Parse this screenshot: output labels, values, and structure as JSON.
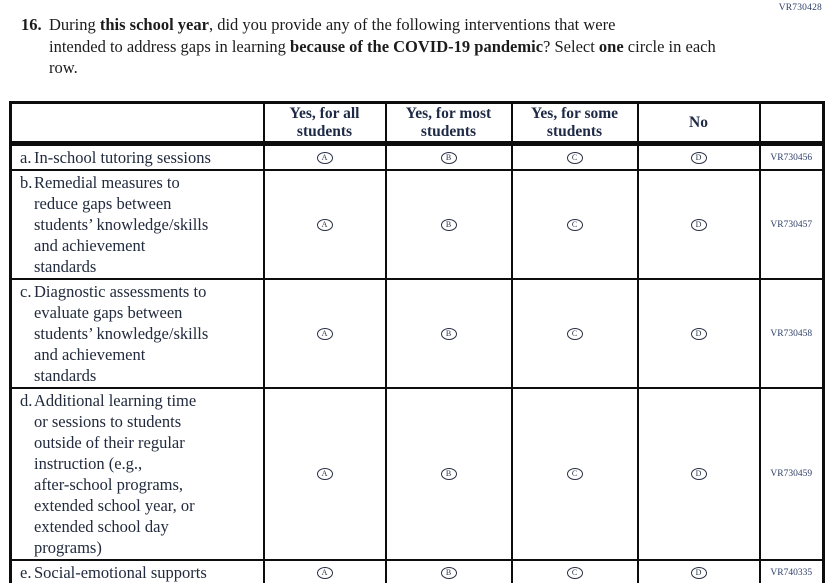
{
  "codes": {
    "top_right": "VR730428"
  },
  "question": {
    "number": "16.",
    "segments": [
      {
        "text": "During ",
        "bold": false
      },
      {
        "text": "this school year",
        "bold": true
      },
      {
        "text": ", did you provide any of the following interventions that were\nintended to address gaps in learning ",
        "bold": false
      },
      {
        "text": "because of the COVID-19 pandemic",
        "bold": true
      },
      {
        "text": "? Select ",
        "bold": false
      },
      {
        "text": "one",
        "bold": true
      },
      {
        "text": " circle in each row.",
        "bold": false
      }
    ]
  },
  "table": {
    "headers": [
      "",
      "Yes, for all\nstudents",
      "Yes, for most\nstudents",
      "Yes, for some\nstudents",
      "No",
      ""
    ],
    "option_letters": [
      "A",
      "B",
      "C",
      "D"
    ],
    "rows": [
      {
        "letter": "a.",
        "label": "In-school tutoring sessions",
        "code": "VR730456"
      },
      {
        "letter": "b.",
        "label": "Remedial measures to\nreduce gaps between\nstudents’ knowledge/skills\nand achievement\nstandards",
        "code": "VR730457"
      },
      {
        "letter": "c.",
        "label": "Diagnostic assessments to\nevaluate gaps between\nstudents’ knowledge/skills\nand achievement\nstandards",
        "code": "VR730458"
      },
      {
        "letter": "d.",
        "label": "Additional learning time\nor sessions to students\noutside of their regular\ninstruction (e.g.,\nafter-school programs,\nextended school year, or\nextended school day\nprograms)",
        "code": "VR730459"
      },
      {
        "letter": "e.",
        "label": "Social-emotional supports",
        "code": "VR740335"
      }
    ]
  },
  "colors": {
    "header_text": "#1e2a45",
    "code_text": "#30406a",
    "body_text": "#222b3d",
    "question_text": "#1c1c1c",
    "border": "#0d0d0d"
  }
}
